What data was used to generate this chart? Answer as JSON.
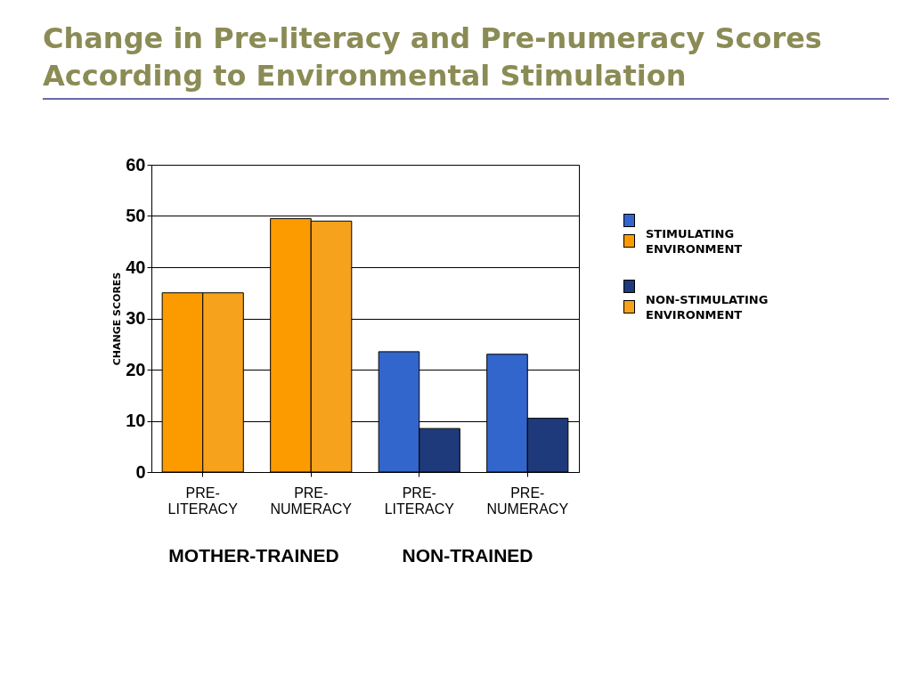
{
  "chart_data": {
    "type": "bar",
    "title": "Change in Pre-literacy and Pre-numeracy Scores According to Environmental Stimulation",
    "categories": [
      "PRE-LITERACY",
      "PRE-NUMERACY",
      "PRE-LITERACY",
      "PRE-NUMERACY"
    ],
    "ylabel": "CHANGE SCORES",
    "series": [
      {
        "name": "STIMULATING ENVIRONMENT",
        "colors": [
          "#fb9b00",
          "#fb9b00",
          "#3366cc",
          "#3366cc"
        ],
        "values": [
          35,
          49.5,
          23.5,
          23
        ]
      },
      {
        "name": "NON-STIMULATING ENVIRONMENT",
        "colors": [
          "#f7a21c",
          "#f7a21c",
          "#1f3a7a",
          "#1f3a7a"
        ],
        "values": [
          35,
          49,
          8.5,
          10.5
        ]
      }
    ],
    "annotations": [
      "MOTHER-TRAINED",
      "NON-TRAINED"
    ],
    "ylim": [
      0,
      60
    ],
    "yticks": [
      0,
      10,
      20,
      30,
      40,
      50,
      60
    ],
    "grid": "y",
    "legend": "right"
  }
}
